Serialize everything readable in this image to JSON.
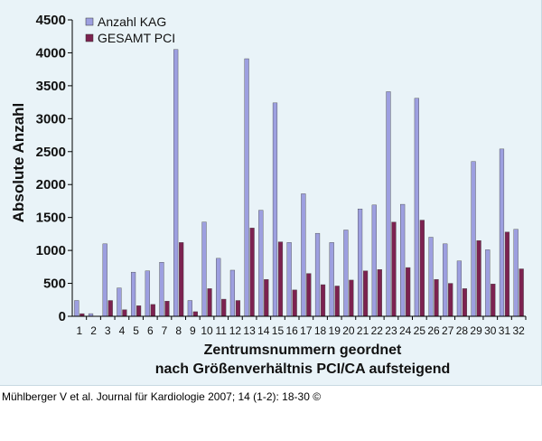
{
  "caption": "Mühlberger V et al. Journal für Kardiologie 2007; 14 (1-2): 18-30 ©",
  "chart_data": {
    "type": "bar",
    "title": "",
    "ylabel": "Absolute Anzahl",
    "xlabel_line1": "Zentrumsnummern geordnet",
    "xlabel_line2": "nach Größenverhältnis PCI/CA aufsteigend",
    "ylim": [
      0,
      4500
    ],
    "yticks": [
      0,
      500,
      1000,
      1500,
      2000,
      2500,
      3000,
      3500,
      4000,
      4500
    ],
    "ytick_labels": [
      "0",
      "500",
      "1000",
      "1500",
      "2000",
      "2500",
      "3000",
      "3500",
      "4000",
      "4500"
    ],
    "grid": false,
    "legend_position": "top-left",
    "categories": [
      "1",
      "2",
      "3",
      "4",
      "5",
      "6",
      "7",
      "8",
      "9",
      "10",
      "11",
      "12",
      "13",
      "14",
      "15",
      "16",
      "17",
      "18",
      "19",
      "20",
      "21",
      "22",
      "23",
      "24",
      "25",
      "26",
      "27",
      "28",
      "29",
      "30",
      "31",
      "32"
    ],
    "series": [
      {
        "name": "Anzahl KAG",
        "color": "#9d9fe0",
        "values": [
          240,
          40,
          1100,
          430,
          670,
          690,
          820,
          4050,
          240,
          1430,
          880,
          700,
          3910,
          1610,
          3240,
          1120,
          1860,
          1260,
          1120,
          1310,
          1630,
          1690,
          3410,
          1700,
          3310,
          1200,
          1100,
          840,
          2350,
          1010,
          2540,
          1320
        ]
      },
      {
        "name": "GESAMT PCI",
        "color": "#7c2250",
        "values": [
          40,
          0,
          240,
          100,
          160,
          180,
          230,
          1120,
          70,
          420,
          260,
          240,
          1340,
          560,
          1130,
          400,
          650,
          480,
          460,
          550,
          690,
          710,
          1430,
          740,
          1460,
          560,
          500,
          420,
          1150,
          490,
          1280,
          720
        ]
      }
    ]
  }
}
